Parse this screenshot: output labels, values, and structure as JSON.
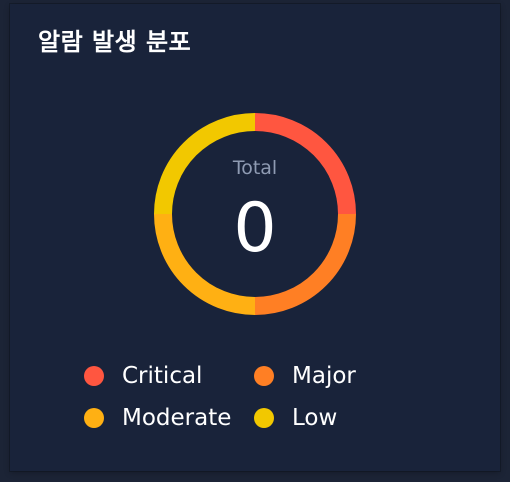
{
  "panel": {
    "title": "알람 발생 분포"
  },
  "donut": {
    "total_label": "Total",
    "total_value": "0"
  },
  "chart_data": {
    "type": "pie",
    "categories": [
      "Critical",
      "Major",
      "Moderate",
      "Low"
    ],
    "values": [
      0,
      0,
      0,
      0
    ],
    "total": 0,
    "legend_position": "bottom"
  },
  "legend": {
    "items": [
      {
        "label": "Critical",
        "color": "#ff5640"
      },
      {
        "label": "Major",
        "color": "#ff7f24"
      },
      {
        "label": "Moderate",
        "color": "#ffb013"
      },
      {
        "label": "Low",
        "color": "#f2c800"
      }
    ]
  },
  "colors": {
    "panel_background": "#19233a",
    "page_background": "#1c2436",
    "title_text": "#ffffff",
    "muted_text": "#8f9bb3"
  }
}
